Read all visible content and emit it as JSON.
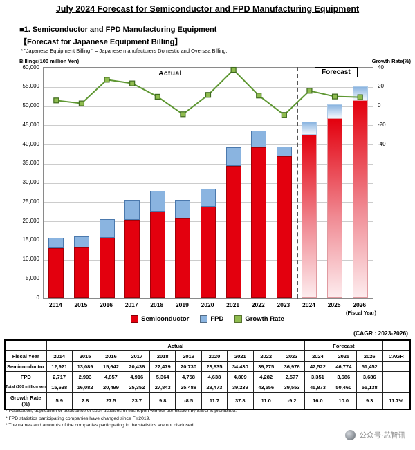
{
  "page": {
    "title": "July 2024 Forecast for Semiconductor and FPD Manufacturing Equipment",
    "section_heading": "■1. Semiconductor and FPD Manufacturing Equipment",
    "sub_heading": "【Forecast for Japanese Equipment Billing】",
    "definition_note": "* \"Japanese Equipment Billing \" = Japanese manufacturers Domestic and Oversea Billing."
  },
  "chart_data": {
    "type": "bar",
    "stacked": true,
    "categories": [
      "2014",
      "2015",
      "2016",
      "2017",
      "2018",
      "2019",
      "2020",
      "2021",
      "2022",
      "2023",
      "2024",
      "2025",
      "2026"
    ],
    "series": [
      {
        "name": "Semiconductor",
        "type": "bar",
        "color": "#e3000e",
        "values": [
          12921,
          13089,
          15642,
          20436,
          22479,
          20730,
          23835,
          34430,
          39275,
          36976,
          42522,
          46774,
          51452
        ]
      },
      {
        "name": "FPD",
        "type": "bar",
        "color": "#8ab4e0",
        "values": [
          2717,
          2993,
          4857,
          4916,
          5364,
          4758,
          4638,
          4809,
          4282,
          2577,
          3351,
          3686,
          3686
        ]
      },
      {
        "name": "Growth Rate",
        "type": "line",
        "axis": "right",
        "color": "#5e9732",
        "values": [
          5.9,
          2.8,
          27.5,
          23.7,
          9.8,
          -8.5,
          11.7,
          37.8,
          11.0,
          -9.2,
          16.0,
          10.0,
          9.3
        ]
      }
    ],
    "left_axis": {
      "label": "Billings(100 million Yen)",
      "min": 0,
      "max": 60000,
      "tick_step": 5000
    },
    "right_axis": {
      "label": "Growth Rate(%)",
      "labels": [
        40,
        20,
        0,
        -20,
        -40
      ],
      "percent_per_gridline": 20,
      "zero_at_left_value": 50000
    },
    "x_axis_note": "(Fiscal Year)",
    "region_labels": {
      "actual": "Actual",
      "forecast": "Forecast"
    },
    "forecast_start_index": 10,
    "marker": {
      "fill": "#8fbc4f",
      "stroke": "#3f6b1f"
    },
    "legend": [
      {
        "label": "Semiconductor",
        "color": "#e3000e"
      },
      {
        "label": "FPD",
        "color": "#8ab4e0"
      },
      {
        "label": "Growth Rate",
        "color": "#8fbc4f"
      }
    ]
  },
  "table": {
    "cagr_note": "(CAGR : 2023-2026)",
    "group_headers": {
      "actual": "Actual",
      "forecast": "Forecast"
    },
    "fiscal_year_header": "Fiscal Year",
    "cagr_header": "CAGR",
    "years": [
      "2014",
      "2015",
      "2016",
      "2017",
      "2018",
      "2019",
      "2020",
      "2021",
      "2022",
      "2023",
      "2024",
      "2025",
      "2026"
    ],
    "forecast_start_index": 10,
    "rows": [
      {
        "label": "Semiconductor",
        "values": [
          "12,921",
          "13,089",
          "15,642",
          "20,436",
          "22,479",
          "20,730",
          "23,835",
          "34,430",
          "39,275",
          "36,976",
          "42,522",
          "46,774",
          "51,452"
        ],
        "cagr": ""
      },
      {
        "label": "FPD",
        "values": [
          "2,717",
          "2,993",
          "4,857",
          "4,916",
          "5,364",
          "4,758",
          "4,638",
          "4,809",
          "4,282",
          "2,577",
          "3,351",
          "3,686",
          "3,686"
        ],
        "cagr": ""
      },
      {
        "label": "Total (100 million yen)",
        "values": [
          "15,638",
          "16,082",
          "20,499",
          "25,352",
          "27,843",
          "25,488",
          "28,473",
          "39,239",
          "43,556",
          "39,553",
          "45,873",
          "50,460",
          "55,138"
        ],
        "cagr": ""
      },
      {
        "label": "Growth Rate (%)",
        "label_lines": [
          "Growth Rate",
          "(%)"
        ],
        "values": [
          "5.9",
          "2.8",
          "27.5",
          "23.7",
          "9.8",
          "-8.5",
          "11.7",
          "37.8",
          "11.0",
          "-9.2",
          "16.0",
          "10.0",
          "9.3"
        ],
        "cagr": "11.7%"
      }
    ]
  },
  "footnotes": [
    "* Publication, duplication or assistance of such activities of this report without permission by SEAJ is prohibited.",
    "* FPD statistics participating companies have changed since FY2019.",
    "* The names and amounts of the companies participating in the statistics are not disclosed."
  ],
  "watermark": {
    "text": "公众号·芯智讯"
  }
}
